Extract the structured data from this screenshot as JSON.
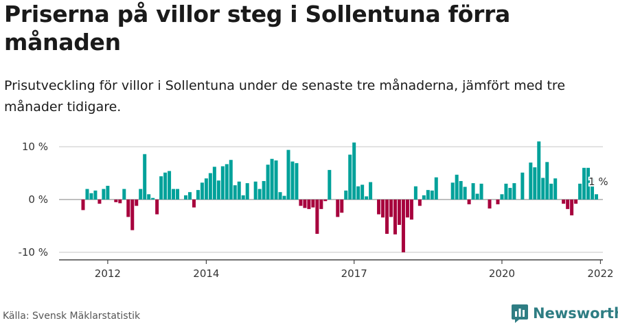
{
  "header": {
    "title": "Priserna på villor steg i Sollentuna förra månaden",
    "subtitle": "Prisutveckling för villor i Sollentuna under de senaste tre månaderna, jämfört med tre månader tidigare."
  },
  "footer": {
    "source": "Källa: Svensk Mäklarstatistik",
    "brand": "Newsworthy"
  },
  "colors": {
    "positive": "#00a19a",
    "negative": "#a7003d",
    "grid": "#d9d9d9",
    "axis": "#444444"
  },
  "icons": {
    "brand": "newsworthy-logo-icon"
  },
  "chart_data": {
    "type": "bar",
    "title": "",
    "xlabel": "",
    "ylabel": "",
    "ylim": [
      -10,
      12
    ],
    "yticks": [
      {
        "value": 10,
        "label": "10 %"
      },
      {
        "value": 0,
        "label": "0 %"
      },
      {
        "value": -10,
        "label": "-10 %"
      }
    ],
    "xticks": [
      {
        "index": 6,
        "label": "2012"
      },
      {
        "index": 30,
        "label": "2014"
      },
      {
        "index": 66,
        "label": "2017"
      },
      {
        "index": 102,
        "label": "2020"
      },
      {
        "index": 126,
        "label": "2022"
      }
    ],
    "annotation": {
      "index": 124,
      "label": "1 %"
    },
    "unit": "%",
    "series": [
      {
        "values": [
          -2,
          2,
          1.2,
          1.7,
          -0.8,
          2,
          2.6,
          0,
          -0.5,
          -0.7,
          2,
          -3.3,
          -5.8,
          -1.2,
          2,
          8.6,
          1,
          0.3,
          -2.8,
          4.4,
          5.1,
          5.4,
          2,
          2,
          0,
          0.8,
          1.4,
          -1.5,
          1.8,
          3.2,
          4,
          5,
          6.2,
          3.6,
          6.3,
          6.7,
          7.5,
          2.7,
          3.4,
          0.8,
          3.1,
          0,
          3.4,
          2,
          3.5,
          6.6,
          7.7,
          7.4,
          1.4,
          0.7,
          9.4,
          7.2,
          6.9,
          -1.2,
          -1.6,
          -1.8,
          -1.5,
          -6.5,
          -1.8,
          -0.3,
          5.6,
          0,
          -3.3,
          -2.5,
          1.7,
          8.5,
          10.8,
          2.5,
          2.8,
          0.6,
          3.3,
          0,
          -2.8,
          -3.4,
          -6.5,
          -3.3,
          -6.6,
          -4.8,
          -10,
          -3.4,
          -3.8,
          2.5,
          -1.2,
          0.8,
          1.8,
          1.7,
          4.2,
          0,
          0,
          0,
          3.2,
          4.7,
          3.5,
          2.4,
          -0.9,
          3.1,
          1.1,
          3,
          0,
          -1.7,
          0,
          -0.9,
          1,
          3,
          2.2,
          3.1,
          0,
          5.1,
          0,
          7,
          6.1,
          11,
          4.1,
          7.1,
          3,
          4,
          0,
          -0.8,
          -1.8,
          -3,
          -0.8,
          3,
          6,
          6,
          4,
          1
        ]
      }
    ]
  }
}
